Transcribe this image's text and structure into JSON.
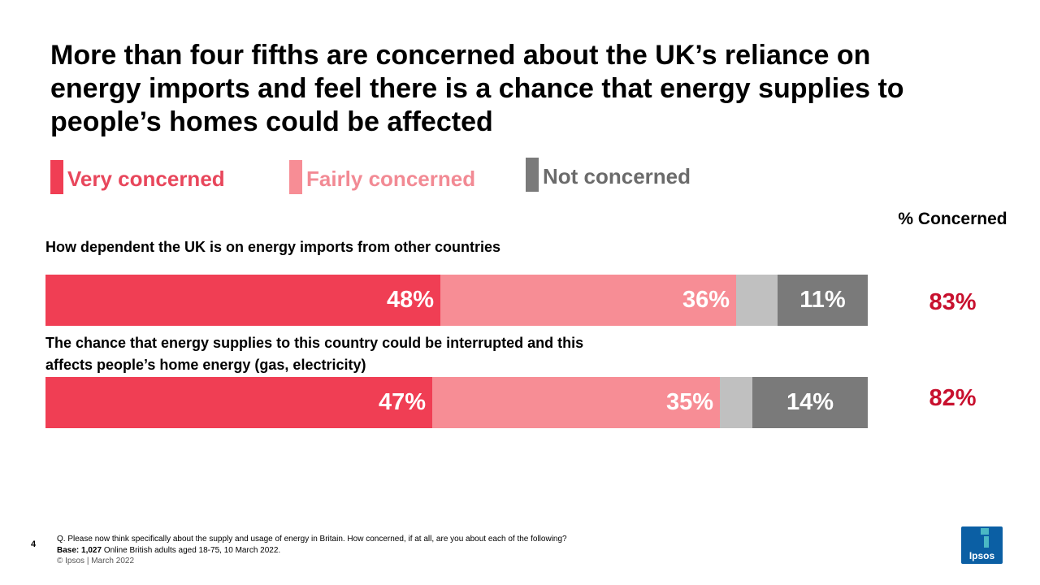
{
  "title": "More than four fifths are concerned about the UK’s reliance on energy imports and feel there is a chance that energy supplies to people’s homes could be affected",
  "legend": [
    {
      "label": "Very concerned",
      "color": "#f03e54"
    },
    {
      "label": "Fairly concerned",
      "color": "#f78d95"
    },
    {
      "label": "Not concerned",
      "color": "#7a7a7a"
    }
  ],
  "pct_header": "% Concerned",
  "chart_data": {
    "type": "bar",
    "orientation": "horizontal-stacked",
    "categories": [
      "How dependent the UK is on energy imports from other countries",
      "The chance that energy supplies to this country could be interrupted and this affects people’s home energy (gas, electricity)"
    ],
    "series": [
      {
        "name": "Very concerned",
        "values": [
          48,
          47
        ],
        "color": "#f03e54"
      },
      {
        "name": "Fairly concerned",
        "values": [
          36,
          35
        ],
        "color": "#f78d95"
      },
      {
        "values": [
          5,
          4
        ],
        "color": "#c0c0c0"
      },
      {
        "name": "Not concerned",
        "values": [
          11,
          14
        ],
        "color": "#7a7a7a"
      }
    ],
    "data_labels": [
      [
        "48%",
        "36%",
        "",
        "11%"
      ],
      [
        "47%",
        "35%",
        "",
        "14%"
      ]
    ],
    "concerned_totals": [
      "83%",
      "82%"
    ],
    "xlim": [
      0,
      100
    ]
  },
  "footer": {
    "page_number": "4",
    "question": "Q. Please now think specifically about the supply and usage of energy in Britain.  How concerned, if at all, are you about each of the following?",
    "base_label": "Base: 1,027",
    "base_text": " Online British adults aged 18-75, 10 March 2022.",
    "copyright": "© Ipsos | March 2022"
  },
  "logo": {
    "text": "Ipsos",
    "color": "#0b5fa4"
  }
}
